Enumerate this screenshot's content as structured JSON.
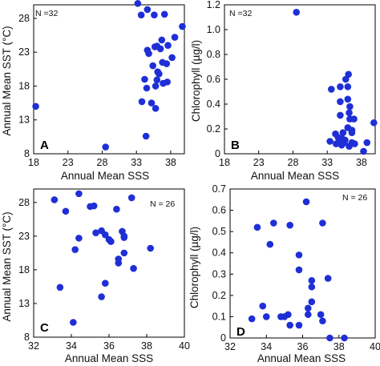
{
  "chart_data": [
    {
      "type": "scatter",
      "panel": "A",
      "note": "N =32",
      "xlabel": "Annual Mean SSS",
      "ylabel": "Annual Mean SST (°C)",
      "xlim": [
        18,
        40
      ],
      "ylim": [
        8,
        30
      ],
      "xticks": [
        18,
        23,
        28,
        33,
        38
      ],
      "yticks": [
        8,
        13,
        18,
        23,
        28
      ],
      "color": "#1f2fd6",
      "points": [
        [
          18.3,
          15.0
        ],
        [
          28.5,
          9.0
        ],
        [
          33.7,
          28.5
        ],
        [
          34.6,
          29.3
        ],
        [
          35.6,
          28.5
        ],
        [
          37.1,
          28.6
        ],
        [
          39.7,
          26.8
        ],
        [
          38.6,
          25.2
        ],
        [
          37.6,
          24.0
        ],
        [
          36.0,
          23.9
        ],
        [
          35.7,
          23.8
        ],
        [
          34.6,
          23.3
        ],
        [
          34.8,
          22.8
        ],
        [
          36.5,
          23.5
        ],
        [
          38.2,
          22.2
        ],
        [
          36.8,
          21.5
        ],
        [
          37.4,
          21.3
        ],
        [
          35.4,
          21.0
        ],
        [
          36.1,
          20.1
        ],
        [
          36.3,
          19.8
        ],
        [
          36.0,
          18.9
        ],
        [
          37.5,
          18.6
        ],
        [
          34.5,
          17.7
        ],
        [
          35.8,
          18.0
        ],
        [
          36.9,
          18.4
        ],
        [
          35.2,
          15.5
        ],
        [
          33.8,
          15.7
        ],
        [
          35.8,
          14.7
        ],
        [
          34.4,
          10.6
        ],
        [
          33.2,
          30.2
        ],
        [
          36.7,
          24.8
        ],
        [
          34.2,
          19.0
        ]
      ]
    },
    {
      "type": "scatter",
      "panel": "B",
      "note": "N =32",
      "xlabel": "Annual Mean SSS",
      "ylabel": "Chlorophyll (µg/l)",
      "xlim": [
        18,
        40
      ],
      "ylim": [
        0,
        1.2
      ],
      "xticks": [
        18,
        23,
        28,
        33,
        38
      ],
      "yticks": [
        0,
        0.2,
        0.4,
        0.6,
        0.8,
        1.0,
        1.2
      ],
      "ytick_labels": [
        "0",
        "0.2",
        "0.4",
        "0.6",
        "0.8",
        "1.0",
        "1.2"
      ],
      "color": "#1f2fd6",
      "points": [
        [
          28.5,
          1.14
        ],
        [
          36.1,
          0.64
        ],
        [
          35.7,
          0.6
        ],
        [
          36.0,
          0.54
        ],
        [
          34.9,
          0.54
        ],
        [
          33.6,
          0.52
        ],
        [
          36.0,
          0.44
        ],
        [
          34.9,
          0.42
        ],
        [
          36.3,
          0.38
        ],
        [
          36.2,
          0.33
        ],
        [
          34.9,
          0.31
        ],
        [
          36.3,
          0.28
        ],
        [
          36.9,
          0.28
        ],
        [
          39.8,
          0.25
        ],
        [
          36.0,
          0.21
        ],
        [
          36.6,
          0.19
        ],
        [
          35.3,
          0.17
        ],
        [
          36.6,
          0.17
        ],
        [
          34.2,
          0.16
        ],
        [
          34.6,
          0.13
        ],
        [
          35.2,
          0.12
        ],
        [
          35.6,
          0.11
        ],
        [
          33.4,
          0.1
        ],
        [
          34.9,
          0.09
        ],
        [
          36.6,
          0.09
        ],
        [
          37.0,
          0.08
        ],
        [
          38.8,
          0.09
        ],
        [
          34.3,
          0.08
        ],
        [
          35.1,
          0.07
        ],
        [
          35.5,
          0.09
        ],
        [
          36.2,
          0.06
        ],
        [
          38.3,
          0.02
        ]
      ]
    },
    {
      "type": "scatter",
      "panel": "C",
      "note": "N = 26",
      "xlabel": "Annual Mean SSS",
      "ylabel": "Annual Mean SST (°C)",
      "xlim": [
        32,
        40
      ],
      "ylim": [
        8,
        30
      ],
      "xticks": [
        32,
        34,
        36,
        38,
        40
      ],
      "yticks": [
        8,
        13,
        18,
        23,
        28
      ],
      "color": "#1f2fd6",
      "points": [
        [
          33.1,
          28.4
        ],
        [
          34.4,
          29.3
        ],
        [
          35.0,
          27.4
        ],
        [
          35.2,
          27.5
        ],
        [
          36.4,
          27.0
        ],
        [
          37.2,
          28.7
        ],
        [
          33.7,
          26.7
        ],
        [
          35.3,
          23.5
        ],
        [
          35.6,
          23.8
        ],
        [
          35.8,
          23.2
        ],
        [
          36.7,
          23.7
        ],
        [
          36.8,
          23.0
        ],
        [
          34.4,
          22.7
        ],
        [
          36.1,
          22.2
        ],
        [
          34.2,
          21.0
        ],
        [
          38.2,
          21.2
        ],
        [
          36.8,
          20.5
        ],
        [
          36.5,
          19.6
        ],
        [
          36.5,
          19.0
        ],
        [
          37.3,
          18.2
        ],
        [
          35.8,
          16.0
        ],
        [
          33.4,
          15.4
        ],
        [
          35.6,
          14.0
        ],
        [
          34.1,
          10.2
        ],
        [
          36.0,
          22.5
        ],
        [
          36.8,
          22.8
        ]
      ]
    },
    {
      "type": "scatter",
      "panel": "D",
      "note": "N = 26",
      "xlabel": "Annual Mean SSS",
      "ylabel": "Chlorophyll (µg/l)",
      "xlim": [
        32,
        40
      ],
      "ylim": [
        0,
        0.7
      ],
      "xticks": [
        32,
        34,
        36,
        38,
        40
      ],
      "yticks": [
        0,
        0.1,
        0.2,
        0.3,
        0.4,
        0.5,
        0.6,
        0.7
      ],
      "ytick_labels": [
        "0",
        "0.1",
        "0.2",
        "0.3",
        "0.4",
        "0.5",
        "0.6",
        "0.7"
      ],
      "color": "#1f2fd6",
      "points": [
        [
          36.2,
          0.64
        ],
        [
          34.4,
          0.54
        ],
        [
          35.3,
          0.53
        ],
        [
          37.1,
          0.54
        ],
        [
          33.5,
          0.52
        ],
        [
          34.2,
          0.44
        ],
        [
          35.8,
          0.39
        ],
        [
          35.8,
          0.32
        ],
        [
          36.5,
          0.27
        ],
        [
          37.4,
          0.28
        ],
        [
          36.5,
          0.24
        ],
        [
          36.5,
          0.17
        ],
        [
          33.8,
          0.15
        ],
        [
          36.3,
          0.14
        ],
        [
          37.0,
          0.11
        ],
        [
          34.0,
          0.1
        ],
        [
          34.8,
          0.1
        ],
        [
          35.2,
          0.11
        ],
        [
          35.0,
          0.1
        ],
        [
          36.3,
          0.11
        ],
        [
          33.2,
          0.09
        ],
        [
          37.1,
          0.08
        ],
        [
          35.3,
          0.06
        ],
        [
          35.8,
          0.06
        ],
        [
          37.5,
          0.0
        ],
        [
          38.3,
          0.0
        ]
      ]
    }
  ]
}
